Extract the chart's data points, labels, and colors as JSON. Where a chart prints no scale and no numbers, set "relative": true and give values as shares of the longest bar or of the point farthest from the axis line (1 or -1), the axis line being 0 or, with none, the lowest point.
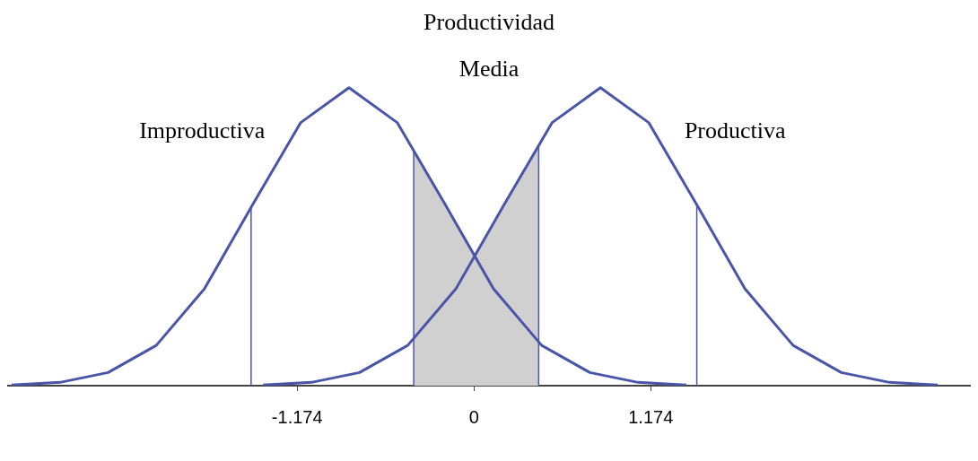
{
  "chart_data": {
    "type": "line",
    "relative": true,
    "marker": "none",
    "grid": false,
    "legend": false,
    "xlim": [
      -3.1,
      3.3
    ],
    "xticks": [
      -1.174,
      0,
      1.174
    ],
    "series": [
      {
        "type": "area",
        "color": "#d0d0d0",
        "x": [
          -0.4,
          -0.19,
          -0.12,
          0,
          0.13,
          0.2,
          0.43
        ],
        "values": [
          0.788,
          0.607,
          0.545,
          0.44,
          0.545,
          0.607,
          0.805
        ]
      },
      {
        "name": "Improductiva",
        "color": "#4a55a8",
        "x": [
          -3.07,
          -2.75,
          -2.43,
          -2.11,
          -1.79,
          -1.47,
          -1.15,
          -0.83,
          -0.51,
          -0.19,
          0.13,
          0.45,
          0.77,
          1.09,
          1.41
        ],
        "values": [
          0.002,
          0.011,
          0.044,
          0.135,
          0.325,
          0.607,
          0.883,
          1,
          0.883,
          0.607,
          0.325,
          0.135,
          0.044,
          0.011,
          0.002
        ]
      },
      {
        "name": "Productiva",
        "color": "#4a55a8",
        "x": [
          -1.4,
          -1.08,
          -0.76,
          -0.44,
          -0.12,
          0.2,
          0.52,
          0.84,
          1.16,
          1.48,
          1.8,
          2.12,
          2.44,
          2.76,
          3.08
        ],
        "values": [
          0.002,
          0.011,
          0.044,
          0.135,
          0.325,
          0.607,
          0.883,
          1,
          0.883,
          0.607,
          0.325,
          0.135,
          0.044,
          0.011,
          0.002
        ]
      }
    ],
    "annotations": [
      "Productividad\nMedia"
    ],
    "ref_lines": [
      {
        "axis": "x",
        "value": -1.48,
        "color": "#4a55a8"
      },
      {
        "axis": "x",
        "value": 1.48,
        "color": "#4a55a8"
      },
      {
        "axis": "x",
        "value": -0.4,
        "color": "#4a55a8"
      },
      {
        "axis": "x",
        "value": 0.43,
        "color": "#4a55a8"
      }
    ]
  }
}
